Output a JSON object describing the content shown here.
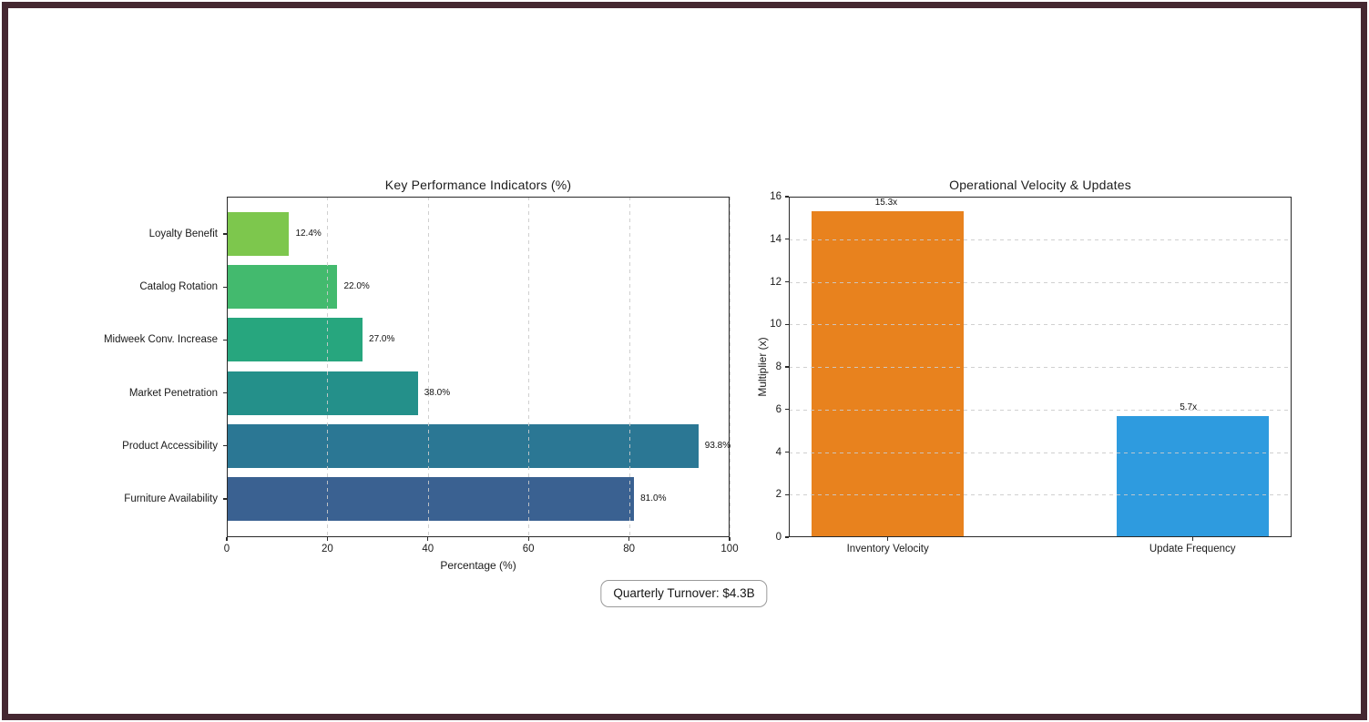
{
  "frame": {
    "border_color": "#452831",
    "background": "#ffffff"
  },
  "chart_data": [
    {
      "type": "bar",
      "orientation": "horizontal",
      "title": "Key Performance Indicators (%)",
      "xlabel": "Percentage (%)",
      "ylabel": "",
      "xlim": [
        0,
        100
      ],
      "xticks": [
        "0",
        "20",
        "40",
        "60",
        "80",
        "100"
      ],
      "xtick_values": [
        0,
        20,
        40,
        60,
        80,
        100
      ],
      "grid": "vertical-dashed",
      "categories": [
        "Loyalty Benefit",
        "Catalog Rotation",
        "Midweek Conv. Increase",
        "Market Penetration",
        "Product Accessibility",
        "Furniture Availability"
      ],
      "values": [
        12.4,
        22.0,
        27.0,
        38.0,
        93.8,
        81.0
      ],
      "value_labels": [
        "12.4%",
        "22.0%",
        "27.0%",
        "38.0%",
        "93.8%",
        "81.0%"
      ],
      "bar_colors": [
        "#7DC74D",
        "#43BA6E",
        "#27A67E",
        "#24908A",
        "#2B7794",
        "#3A6191"
      ]
    },
    {
      "type": "bar",
      "orientation": "vertical",
      "title": "Operational Velocity & Updates",
      "xlabel": "",
      "ylabel": "Multiplier (x)",
      "ylim": [
        0,
        16
      ],
      "yticks": [
        "0",
        "2",
        "4",
        "6",
        "8",
        "10",
        "12",
        "14",
        "16"
      ],
      "ytick_values": [
        0,
        2,
        4,
        6,
        8,
        10,
        12,
        14,
        16
      ],
      "grid": "horizontal-dashed",
      "categories": [
        "Inventory Velocity",
        "Update Frequency"
      ],
      "values": [
        15.3,
        5.7
      ],
      "value_labels": [
        "15.3x",
        "5.7x"
      ],
      "bar_colors": [
        "#E8821E",
        "#2E9BDF"
      ]
    }
  ],
  "annotation": {
    "text": "Quarterly Turnover: $4.3B"
  },
  "colors": {
    "grid": "#cbcbcb",
    "spine": "#2a2a2a",
    "text": "#1a1a1a",
    "frame": "#452831"
  }
}
